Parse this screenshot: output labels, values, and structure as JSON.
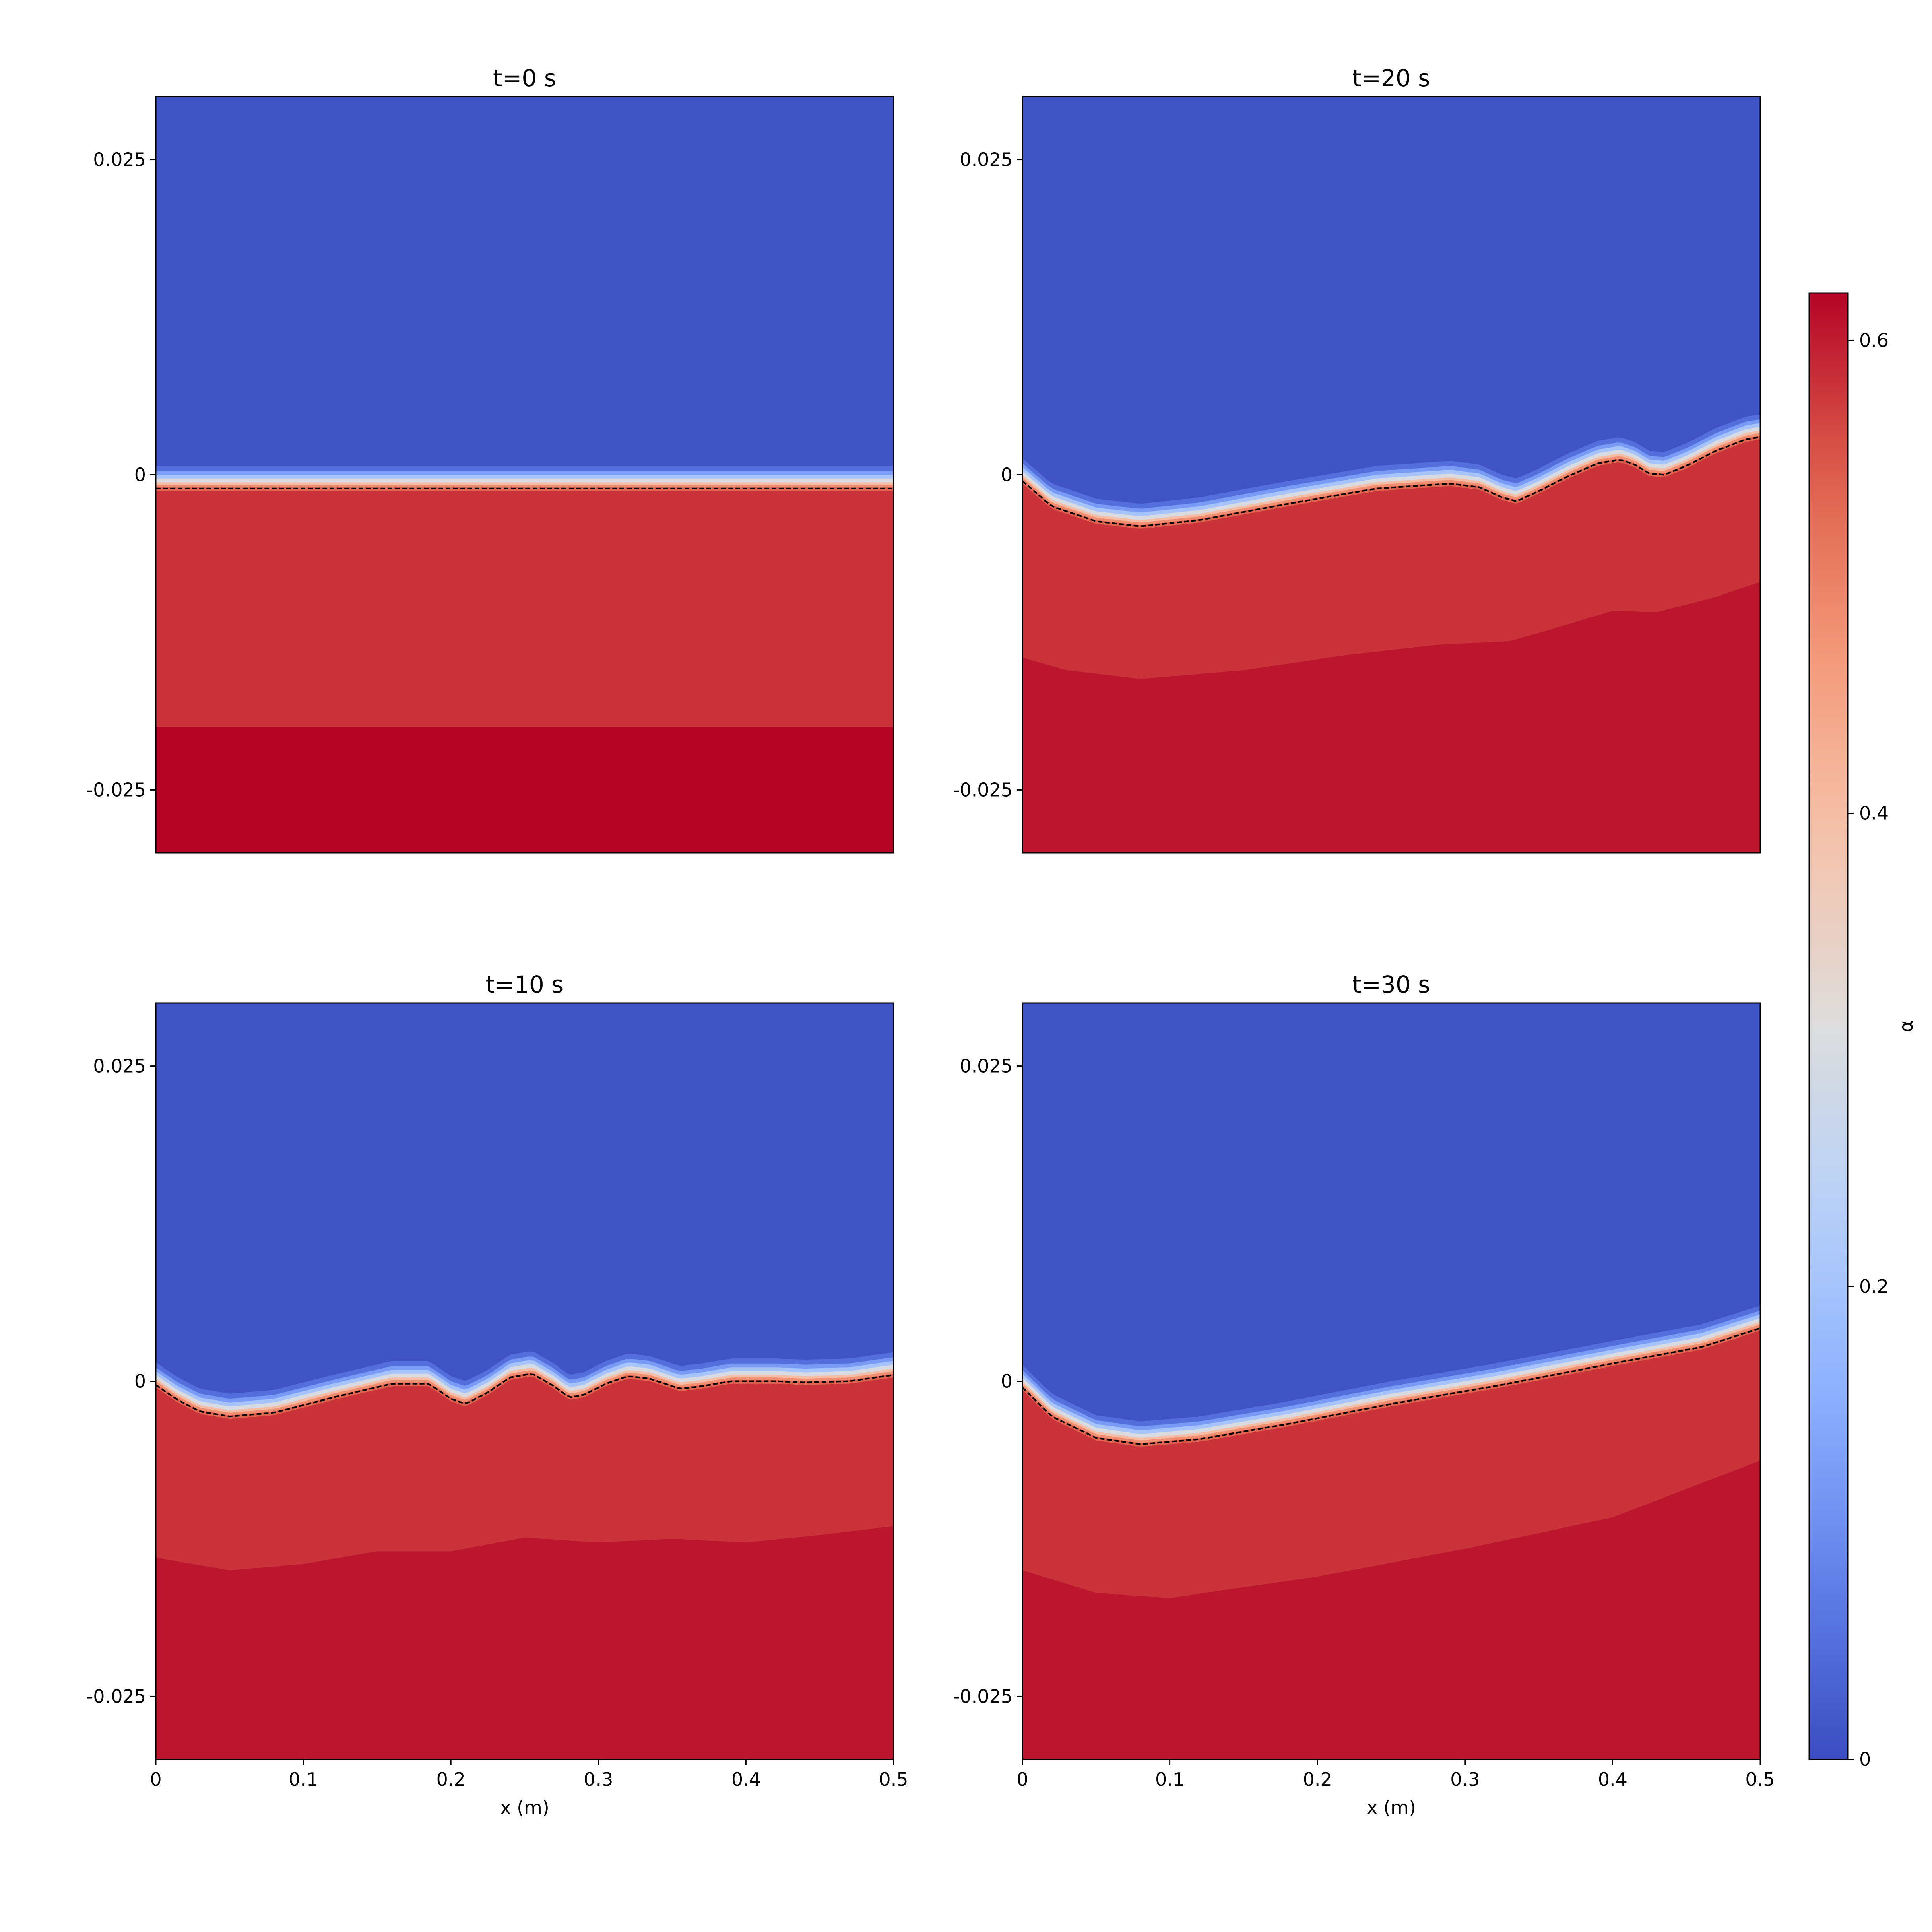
{
  "chart_data": {
    "type": "heatmap",
    "colorbar": {
      "label": "α",
      "range": [
        0,
        0.62
      ],
      "ticks": [
        {
          "value": 0,
          "label": "0"
        },
        {
          "value": 0.2,
          "label": "0.2"
        },
        {
          "value": 0.4,
          "label": "0.4"
        },
        {
          "value": 0.6,
          "label": "0.6"
        }
      ],
      "colormap": "coolwarm"
    },
    "xlim": [
      0,
      0.5
    ],
    "ylim": [
      -0.03,
      0.03
    ],
    "x_ticks": [
      {
        "value": 0,
        "label": "0"
      },
      {
        "value": 0.1,
        "label": "0.1"
      },
      {
        "value": 0.2,
        "label": "0.2"
      },
      {
        "value": 0.3,
        "label": "0.3"
      },
      {
        "value": 0.4,
        "label": "0.4"
      },
      {
        "value": 0.5,
        "label": "0.5"
      }
    ],
    "y_ticks": [
      {
        "value": 0.025,
        "label": "0.025"
      },
      {
        "value": 0,
        "label": "0"
      },
      {
        "value": -0.025,
        "label": "-0.025"
      }
    ],
    "xlabel": "x (m)",
    "panels": [
      {
        "title": "t=0 s",
        "interface": [
          [
            0,
            -0.0011
          ],
          [
            0.5,
            -0.0011
          ]
        ],
        "band_boundary": [
          [
            0,
            -0.02
          ],
          [
            0.5,
            -0.02
          ]
        ]
      },
      {
        "title": "t=20 s",
        "interface": [
          [
            0,
            -0.0005
          ],
          [
            0.02,
            -0.0025
          ],
          [
            0.05,
            -0.0037
          ],
          [
            0.08,
            -0.0041
          ],
          [
            0.12,
            -0.0036
          ],
          [
            0.18,
            -0.0023
          ],
          [
            0.24,
            -0.0011
          ],
          [
            0.29,
            -0.0007
          ],
          [
            0.31,
            -0.001
          ],
          [
            0.325,
            -0.0018
          ],
          [
            0.335,
            -0.0021
          ],
          [
            0.35,
            -0.0013
          ],
          [
            0.37,
            -0.0001
          ],
          [
            0.39,
            0.0009
          ],
          [
            0.405,
            0.0012
          ],
          [
            0.415,
            0.0008
          ],
          [
            0.425,
            0.0001
          ],
          [
            0.435,
            0.0
          ],
          [
            0.45,
            0.0007
          ],
          [
            0.47,
            0.0019
          ],
          [
            0.49,
            0.0028
          ],
          [
            0.5,
            0.003
          ]
        ],
        "band_boundary": [
          [
            0,
            -0.0145
          ],
          [
            0.03,
            -0.0155
          ],
          [
            0.08,
            -0.0162
          ],
          [
            0.15,
            -0.0155
          ],
          [
            0.22,
            -0.0143
          ],
          [
            0.28,
            -0.0135
          ],
          [
            0.33,
            -0.0132
          ],
          [
            0.36,
            -0.0122
          ],
          [
            0.4,
            -0.0108
          ],
          [
            0.43,
            -0.0109
          ],
          [
            0.47,
            -0.0097
          ],
          [
            0.5,
            -0.0085
          ]
        ]
      },
      {
        "title": "t=10 s",
        "interface": [
          [
            0,
            -0.0003
          ],
          [
            0.015,
            -0.0015
          ],
          [
            0.03,
            -0.0024
          ],
          [
            0.05,
            -0.0028
          ],
          [
            0.08,
            -0.0025
          ],
          [
            0.12,
            -0.0013
          ],
          [
            0.16,
            -0.0002
          ],
          [
            0.185,
            -0.0002
          ],
          [
            0.2,
            -0.0014
          ],
          [
            0.21,
            -0.0018
          ],
          [
            0.225,
            -0.0009
          ],
          [
            0.24,
            0.0003
          ],
          [
            0.255,
            0.0006
          ],
          [
            0.27,
            -0.0004
          ],
          [
            0.28,
            -0.0013
          ],
          [
            0.29,
            -0.0011
          ],
          [
            0.305,
            -0.0002
          ],
          [
            0.32,
            0.0004
          ],
          [
            0.335,
            0.0002
          ],
          [
            0.355,
            -0.0006
          ],
          [
            0.37,
            -0.0004
          ],
          [
            0.39,
            0.0
          ],
          [
            0.42,
            0.0
          ],
          [
            0.44,
            -0.0001
          ],
          [
            0.47,
            0.0
          ],
          [
            0.5,
            0.0005
          ]
        ],
        "band_boundary": [
          [
            0,
            -0.014
          ],
          [
            0.05,
            -0.015
          ],
          [
            0.1,
            -0.0145
          ],
          [
            0.15,
            -0.0135
          ],
          [
            0.2,
            -0.0135
          ],
          [
            0.25,
            -0.0124
          ],
          [
            0.3,
            -0.0128
          ],
          [
            0.35,
            -0.0125
          ],
          [
            0.4,
            -0.0128
          ],
          [
            0.45,
            -0.0122
          ],
          [
            0.5,
            -0.0115
          ]
        ]
      },
      {
        "title": "t=30 s",
        "interface": [
          [
            0,
            -0.0005
          ],
          [
            0.02,
            -0.0028
          ],
          [
            0.05,
            -0.0045
          ],
          [
            0.08,
            -0.005
          ],
          [
            0.12,
            -0.0046
          ],
          [
            0.18,
            -0.0034
          ],
          [
            0.25,
            -0.0018
          ],
          [
            0.32,
            -0.0004
          ],
          [
            0.4,
            0.0014
          ],
          [
            0.46,
            0.0027
          ],
          [
            0.5,
            0.0042
          ]
        ],
        "band_boundary": [
          [
            0,
            -0.015
          ],
          [
            0.05,
            -0.0168
          ],
          [
            0.1,
            -0.0172
          ],
          [
            0.2,
            -0.0155
          ],
          [
            0.3,
            -0.0133
          ],
          [
            0.4,
            -0.0108
          ],
          [
            0.5,
            -0.0063
          ]
        ]
      }
    ]
  }
}
